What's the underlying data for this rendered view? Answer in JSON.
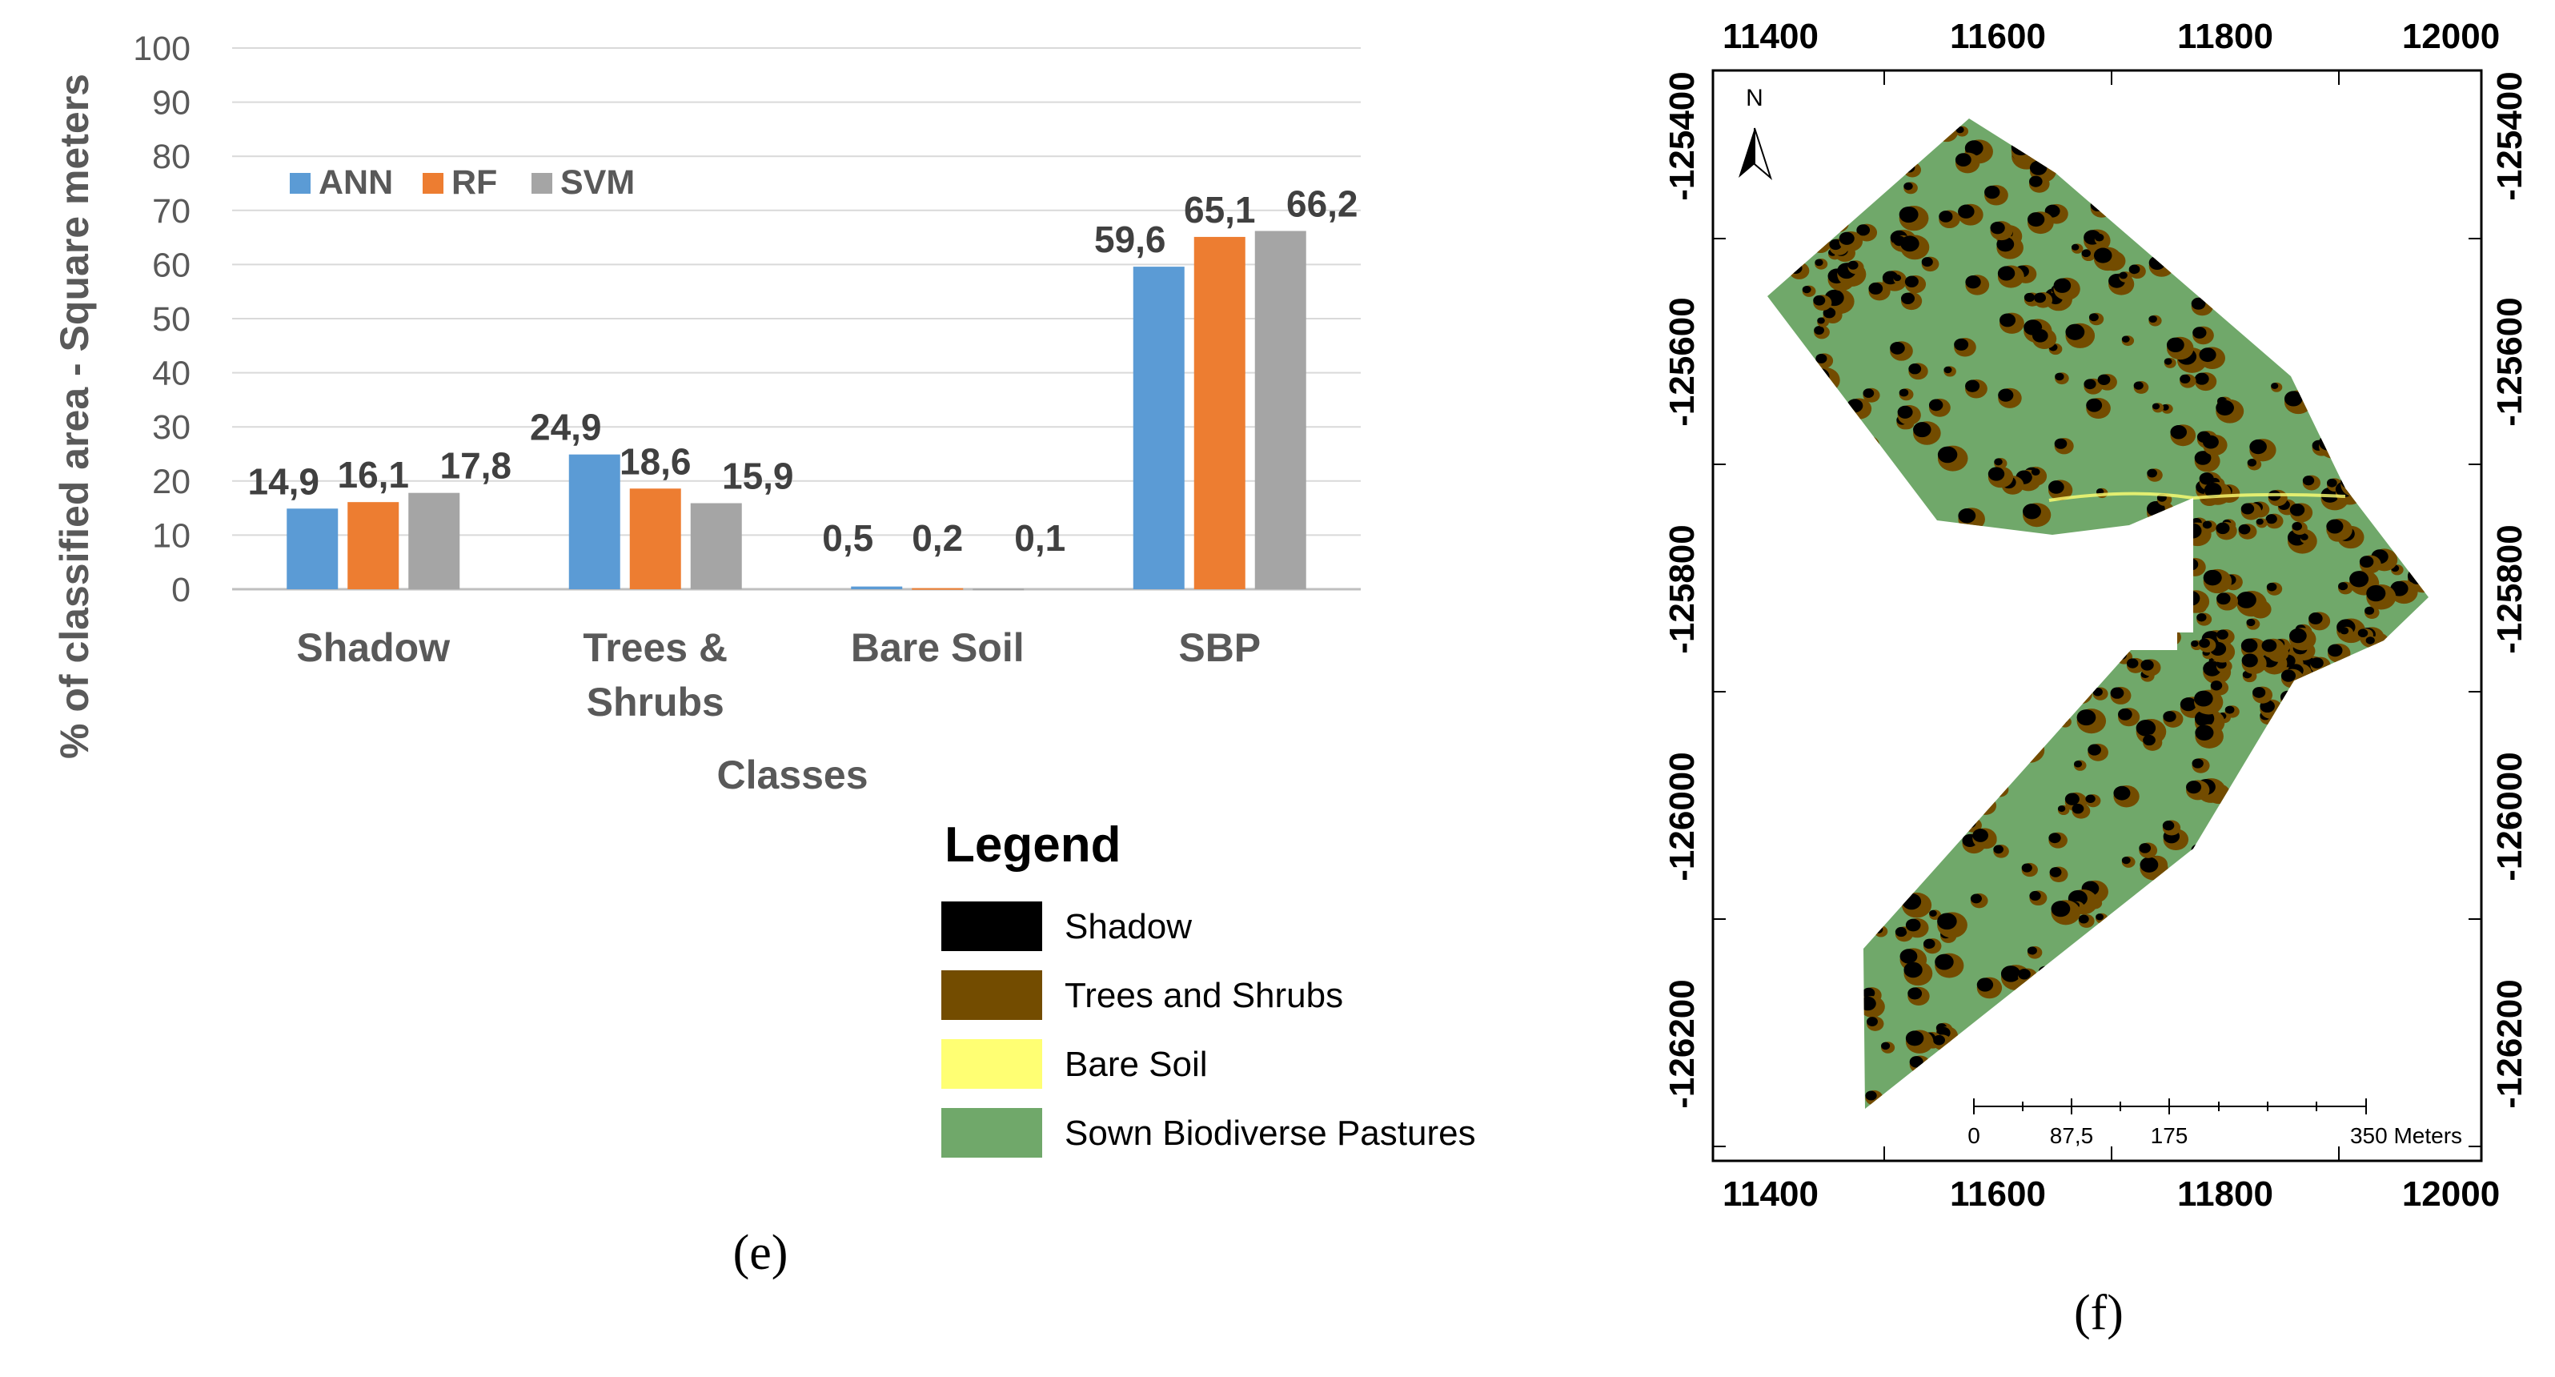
{
  "chart_data": {
    "type": "bar",
    "ylabel": "% of classified area - Square meters",
    "xlabel": "Classes",
    "ylim": [
      0,
      100
    ],
    "y_ticks": [
      "0",
      "10",
      "20",
      "30",
      "40",
      "50",
      "60",
      "70",
      "80",
      "90",
      "100"
    ],
    "categories": [
      {
        "lines": [
          "Shadow"
        ]
      },
      {
        "lines": [
          "Trees &",
          "Shrubs"
        ]
      },
      {
        "lines": [
          "Bare Soil"
        ]
      },
      {
        "lines": [
          "SBP"
        ]
      }
    ],
    "series": [
      {
        "name": "ANN",
        "color": "#5b9bd5",
        "values": [
          14.9,
          24.9,
          0.5,
          59.6
        ],
        "labels": [
          "14,9",
          "24,9",
          "0,5",
          "59,6"
        ]
      },
      {
        "name": "RF",
        "color": "#ed7d31",
        "values": [
          16.1,
          18.6,
          0.2,
          65.1
        ],
        "labels": [
          "16,1",
          "18,6",
          "0,2",
          "65,1"
        ]
      },
      {
        "name": "SVM",
        "color": "#a5a5a5",
        "values": [
          17.8,
          15.9,
          0.1,
          66.2
        ],
        "labels": [
          "17,8",
          "15,9",
          "0,1",
          "66,2"
        ]
      }
    ],
    "legend_position": "top-left",
    "grid": true
  },
  "map_legend": {
    "title": "Legend",
    "items": [
      {
        "label": "Shadow",
        "color": "#000000"
      },
      {
        "label": "Trees and Shrubs",
        "color": "#734c00"
      },
      {
        "label": "Bare Soil",
        "color": "#ffff73"
      },
      {
        "label": "Sown Biodiverse Pastures",
        "color": "#70a86a"
      }
    ]
  },
  "map": {
    "x_ticks": [
      "11400",
      "11600",
      "11800",
      "12000"
    ],
    "y_ticks": [
      "-125400",
      "-125600",
      "-125800",
      "-126000",
      "-126200"
    ],
    "north_label": "N",
    "scale_labels": [
      "0",
      "87,5",
      "175",
      "350 Meters"
    ],
    "colors": {
      "pasture": "#70a86a",
      "trees": "#734c00",
      "shadow": "#000000",
      "soil": "#ffff73"
    }
  },
  "captions": {
    "left": "(e)",
    "right": "(f)"
  }
}
